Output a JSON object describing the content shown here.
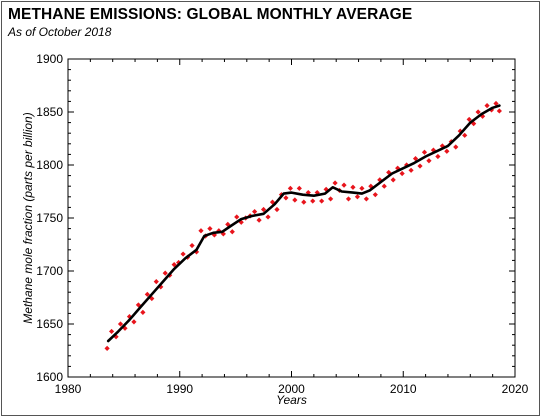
{
  "chart_data": {
    "type": "line",
    "title": "METHANE EMISSIONS: GLOBAL MONTHLY AVERAGE",
    "subtitle": "As of October 2018",
    "xlabel": "Years",
    "ylabel": "Methane mole fraction (parts per billion)",
    "xlim": [
      1980,
      2020
    ],
    "ylim": [
      1600,
      1900
    ],
    "xticks": [
      1980,
      1990,
      2000,
      2010,
      2020
    ],
    "yticks": [
      1600,
      1650,
      1700,
      1750,
      1800,
      1850,
      1900
    ],
    "grid": false,
    "colors": {
      "monthly": "#e8141c",
      "trend": "#000000"
    },
    "trend": {
      "x": [
        1983.6,
        1984.5,
        1985.5,
        1986.5,
        1987.5,
        1988.5,
        1989.5,
        1990.5,
        1991.5,
        1992.2,
        1993,
        1993.8,
        1994.5,
        1995.5,
        1996.5,
        1997.5,
        1998.5,
        1999.3,
        2000,
        2001,
        2002,
        2003,
        2003.7,
        2004.5,
        2005.5,
        2006.3,
        2007,
        2008,
        2009,
        2010,
        2011,
        2012,
        2013,
        2014,
        2015,
        2016,
        2017,
        2018,
        2018.6
      ],
      "y": [
        1634,
        1643,
        1654,
        1666,
        1678,
        1690,
        1702,
        1712,
        1720,
        1733,
        1736,
        1737,
        1742,
        1749,
        1752,
        1754,
        1763,
        1773,
        1774,
        1772,
        1771,
        1773,
        1779,
        1775,
        1774,
        1773,
        1776,
        1784,
        1792,
        1797,
        1802,
        1808,
        1813,
        1818,
        1828,
        1840,
        1848,
        1854,
        1856
      ]
    },
    "monthly": {
      "x": [
        1983.5,
        1983.9,
        1984.3,
        1984.7,
        1985.1,
        1985.5,
        1985.9,
        1986.3,
        1986.7,
        1987.1,
        1987.5,
        1987.9,
        1988.3,
        1988.7,
        1989.1,
        1989.5,
        1989.9,
        1990.3,
        1990.7,
        1991.1,
        1991.5,
        1991.9,
        1992.3,
        1992.7,
        1993.1,
        1993.5,
        1993.9,
        1994.3,
        1994.7,
        1995.1,
        1995.5,
        1995.9,
        1996.3,
        1996.7,
        1997.1,
        1997.5,
        1997.9,
        1998.3,
        1998.7,
        1999.1,
        1999.5,
        1999.9,
        2000.3,
        2000.7,
        2001.1,
        2001.5,
        2001.9,
        2002.3,
        2002.7,
        2003.1,
        2003.5,
        2003.9,
        2004.3,
        2004.7,
        2005.1,
        2005.5,
        2005.9,
        2006.3,
        2006.7,
        2007.1,
        2007.5,
        2007.9,
        2008.3,
        2008.7,
        2009.1,
        2009.5,
        2009.9,
        2010.3,
        2010.7,
        2011.1,
        2011.5,
        2011.9,
        2012.3,
        2012.7,
        2013.1,
        2013.5,
        2013.9,
        2014.3,
        2014.7,
        2015.1,
        2015.5,
        2015.9,
        2016.3,
        2016.7,
        2017.1,
        2017.5,
        2017.9,
        2018.3,
        2018.6
      ],
      "y": [
        1627,
        1643,
        1638,
        1650,
        1646,
        1657,
        1652,
        1668,
        1661,
        1678,
        1674,
        1690,
        1685,
        1698,
        1696,
        1706,
        1708,
        1716,
        1713,
        1724,
        1718,
        1738,
        1733,
        1740,
        1734,
        1738,
        1735,
        1744,
        1737,
        1751,
        1746,
        1750,
        1752,
        1756,
        1748,
        1758,
        1751,
        1765,
        1758,
        1772,
        1769,
        1778,
        1767,
        1778,
        1765,
        1774,
        1766,
        1774,
        1766,
        1777,
        1768,
        1783,
        1776,
        1781,
        1768,
        1779,
        1770,
        1778,
        1768,
        1780,
        1772,
        1786,
        1780,
        1793,
        1786,
        1797,
        1792,
        1800,
        1795,
        1806,
        1799,
        1812,
        1804,
        1814,
        1808,
        1818,
        1813,
        1822,
        1817,
        1832,
        1828,
        1843,
        1839,
        1850,
        1846,
        1856,
        1852,
        1858,
        1851
      ]
    }
  }
}
